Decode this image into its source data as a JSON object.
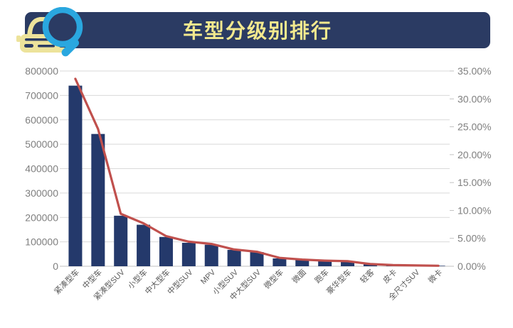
{
  "header": {
    "title": "车型分级别排行",
    "bg_color": "#2B3B63",
    "title_color": "#F3E98E",
    "icon": "car-with-magnifier-icon"
  },
  "chart_data": {
    "type": "bar",
    "title": "车型分级别排行",
    "categories": [
      "紧凑型车",
      "中型车",
      "紧凑型SUV",
      "小型车",
      "中大型车",
      "中型SUV",
      "MPV",
      "小型SUV",
      "中大型SUV",
      "微型车",
      "微面",
      "跑车",
      "豪华型车",
      "轻客",
      "皮卡",
      "全尺寸SUV",
      "微卡"
    ],
    "series": [
      {
        "type": "bar",
        "axis": "left",
        "color": "#24396B",
        "values": [
          740000,
          542000,
          207000,
          170000,
          120000,
          96000,
          88000,
          67000,
          58000,
          32000,
          27000,
          21000,
          19000,
          8000,
          4000,
          3000,
          2000
        ]
      },
      {
        "type": "line",
        "axis": "right",
        "color": "#C0504D",
        "values": [
          33.6,
          24.6,
          9.4,
          7.7,
          5.4,
          4.4,
          4.0,
          3.0,
          2.6,
          1.5,
          1.2,
          1.0,
          0.9,
          0.4,
          0.2,
          0.14,
          0.09
        ]
      }
    ],
    "left_axis": {
      "min": 0,
      "max": 800000,
      "step": 100000,
      "labels": [
        "0",
        "100000",
        "200000",
        "300000",
        "400000",
        "500000",
        "600000",
        "700000",
        "800000"
      ]
    },
    "right_axis": {
      "min": 0,
      "max": 35,
      "step": 5,
      "labels": [
        "0.00%",
        "5.00%",
        "10.00%",
        "15.00%",
        "20.00%",
        "25.00%",
        "30.00%",
        "35.00%"
      ]
    },
    "grid": true,
    "legend_position": "none",
    "x_label_rotation": -45
  },
  "colors": {
    "header_bg": "#2B3B63",
    "header_title": "#F3E98E",
    "bar": "#24396B",
    "line": "#C0504D",
    "car_icon": "#EDE39B",
    "magnifier": "#2AA7DF",
    "axis_text": "#7F7F7F",
    "category_text": "#595959",
    "gridline": "#D9D9D9"
  }
}
